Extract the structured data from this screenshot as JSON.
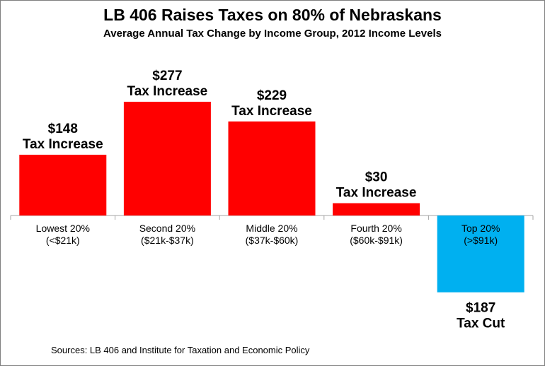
{
  "title": "LB 406 Raises Taxes on 80%  of Nebraskans",
  "subtitle": "Average Annual Tax Change by Income Group, 2012 Income Levels",
  "source": "Sources: LB 406  and Institute for Taxation and Economic Policy",
  "colors": {
    "increase": "#ff0000",
    "cut": "#00b0f0",
    "axis": "#a6a6a6"
  },
  "chart_data": {
    "type": "bar",
    "title": "LB 406 Raises Taxes on 80%  of Nebraskans",
    "subtitle": "Average Annual Tax Change by Income Group, 2012 Income Levels",
    "categories": [
      "Lowest 20%",
      "Second 20%",
      "Middle 20%",
      "Fourth 20%",
      "Top 20%"
    ],
    "category_ranges": [
      "(<$21k)",
      "($21k-$37k)",
      "($37k-$60k)",
      "($60k-$91k)",
      "(>$91k)"
    ],
    "values": [
      148,
      277,
      229,
      30,
      -187
    ],
    "value_labels": [
      "$148",
      "$277",
      "$229",
      "$30",
      "$187"
    ],
    "change_labels": [
      "Tax Increase",
      "Tax Increase",
      "Tax Increase",
      "Tax Increase",
      "Tax Cut"
    ],
    "ylim": [
      -187,
      277
    ]
  }
}
